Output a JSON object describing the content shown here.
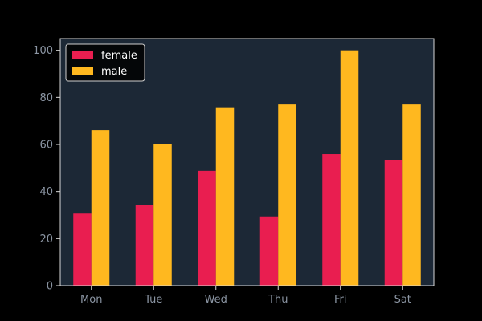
{
  "chart_data": {
    "type": "bar",
    "categories": [
      "Mon",
      "Tue",
      "Wed",
      "Thu",
      "Fri",
      "Sat"
    ],
    "series": [
      {
        "name": "female",
        "values": [
          30.6,
          34.2,
          48.8,
          29.4,
          55.9,
          53.2
        ],
        "color": "#e91e50"
      },
      {
        "name": "male",
        "values": [
          66.1,
          60.0,
          75.8,
          77.0,
          100.0,
          77.0
        ],
        "color": "#ffb81f"
      }
    ],
    "ylim": [
      0,
      105
    ],
    "yticks": [
      0,
      20,
      40,
      60,
      80,
      100
    ],
    "grid": false,
    "legend_position": "top-left",
    "colors": {
      "background": "#000000",
      "plot_background": "#1c2836",
      "axis": "#d9d9d9",
      "tick_text": "#8b95a3"
    }
  }
}
